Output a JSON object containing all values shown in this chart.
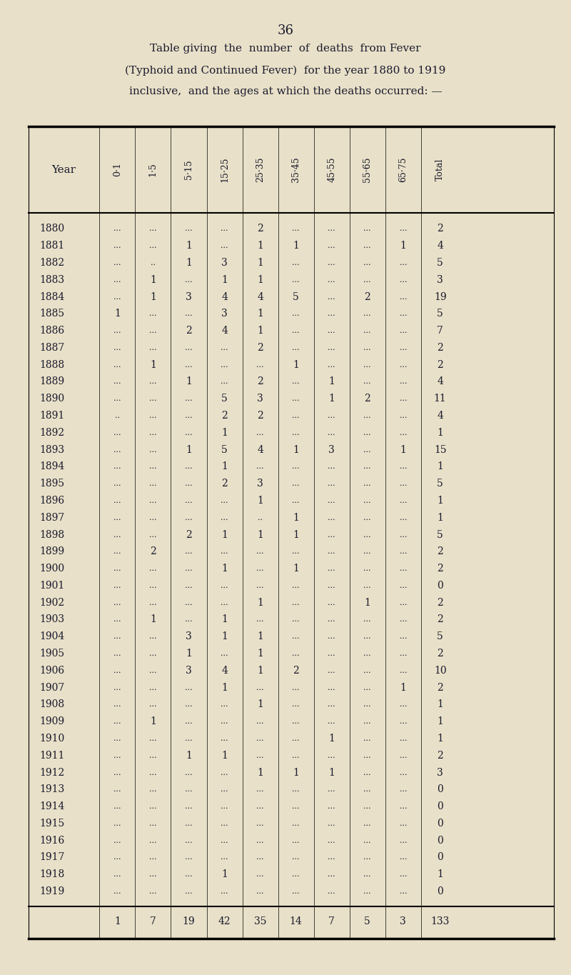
{
  "page_number": "36",
  "title_lines": [
    "Table giving  the  number  of  deaths  from Fever",
    "(Typhoid and Continued Fever)  for the year 1880 to 1919",
    "inclusive,  and the ages at which the deaths occurred: —"
  ],
  "columns": [
    "Year",
    "0·1",
    "1·5",
    "5·15",
    "15·25",
    "25·35",
    "35·45",
    "45·55",
    "55·65",
    "65·75",
    "Total"
  ],
  "col_headers_rotated": [
    "0·1",
    "1·5",
    "5·15",
    "15·25",
    "25·35",
    "35·45",
    "45·55",
    "55·65",
    "65·75",
    "Total"
  ],
  "rows": [
    [
      1880,
      "...",
      "...",
      "...",
      "...",
      2,
      "...",
      "...",
      "...",
      "...",
      2
    ],
    [
      1881,
      "...",
      "...",
      1,
      "...",
      1,
      1,
      "...",
      "...",
      1,
      4
    ],
    [
      1882,
      "...",
      "..",
      1,
      3,
      1,
      "...",
      "...",
      "...",
      "...",
      5
    ],
    [
      1883,
      "...",
      1,
      "...",
      1,
      1,
      "...",
      "...",
      "...",
      "...",
      3
    ],
    [
      1884,
      "...",
      1,
      3,
      4,
      4,
      5,
      "...",
      2,
      "...",
      19
    ],
    [
      1885,
      1,
      "...",
      "...",
      3,
      1,
      "...",
      "...",
      "...",
      "...",
      5
    ],
    [
      1886,
      "...",
      "...",
      2,
      4,
      1,
      "...",
      "...",
      "...",
      "...",
      7
    ],
    [
      1887,
      "...",
      "...",
      "...",
      "...",
      2,
      "...",
      "...",
      "...",
      "...",
      2
    ],
    [
      1888,
      "...",
      1,
      "...",
      "...",
      "...",
      1,
      "...",
      "...",
      "...",
      2
    ],
    [
      1889,
      "...",
      "...",
      1,
      "...",
      2,
      "...",
      1,
      "...",
      "...",
      4
    ],
    [
      1890,
      "...",
      "...",
      "...",
      5,
      3,
      "...",
      1,
      2,
      "...",
      11
    ],
    [
      1891,
      "..",
      "...",
      "...",
      2,
      2,
      "...",
      "...",
      "...",
      "...",
      4
    ],
    [
      1892,
      "...",
      "...",
      "...",
      1,
      "...",
      "...",
      "...",
      "...",
      "...",
      1
    ],
    [
      1893,
      "...",
      "...",
      1,
      5,
      4,
      1,
      3,
      "...",
      1,
      15
    ],
    [
      1894,
      "...",
      "...",
      "...",
      1,
      "...",
      "...",
      "...",
      "...",
      "...",
      1
    ],
    [
      1895,
      "...",
      "...",
      "...",
      2,
      3,
      "...",
      "...",
      "...",
      "...",
      5
    ],
    [
      1896,
      "...",
      "...",
      "...",
      "...",
      1,
      "...",
      "...",
      "...",
      "...",
      1
    ],
    [
      1897,
      "...",
      "...",
      "...",
      "...",
      "..",
      1,
      "...",
      "...",
      "...",
      1
    ],
    [
      1898,
      "...",
      "...",
      2,
      1,
      1,
      1,
      "...",
      "...",
      "...",
      5
    ],
    [
      1899,
      "...",
      2,
      "...",
      "...",
      "...",
      "...",
      "...",
      "...",
      "...",
      2
    ],
    [
      1900,
      "...",
      "...",
      "...",
      1,
      "...",
      1,
      "...",
      "...",
      "...",
      2
    ],
    [
      1901,
      "...",
      "...",
      "...",
      "...",
      "...",
      "...",
      "...",
      "...",
      "...",
      0
    ],
    [
      1902,
      "...",
      "...",
      "...",
      "...",
      1,
      "...",
      "...",
      1,
      "...",
      2
    ],
    [
      1903,
      "...",
      1,
      "...",
      1,
      "...",
      "...",
      "...",
      "...",
      "...",
      2
    ],
    [
      1904,
      "...",
      "...",
      3,
      1,
      1,
      "...",
      "...",
      "...",
      "...",
      5
    ],
    [
      1905,
      "...",
      "...",
      1,
      "...",
      1,
      "...",
      "...",
      "...",
      "...",
      2
    ],
    [
      1906,
      "...",
      "...",
      3,
      4,
      1,
      2,
      "...",
      "...",
      "...",
      10
    ],
    [
      1907,
      "...",
      "...",
      "...",
      1,
      "...",
      "...",
      "...",
      "...",
      1,
      2
    ],
    [
      1908,
      "...",
      "...",
      "...",
      "...",
      1,
      "...",
      "...",
      "...",
      "...",
      1
    ],
    [
      1909,
      "...",
      1,
      "...",
      "...",
      "...",
      "...",
      "...",
      "...",
      "...",
      1
    ],
    [
      1910,
      "...",
      "...",
      "...",
      "...",
      "...",
      "...",
      1,
      "...",
      "...",
      1
    ],
    [
      1911,
      "...",
      "...",
      1,
      1,
      "...",
      "...",
      "...",
      "...",
      "...",
      2
    ],
    [
      1912,
      "...",
      "...",
      "...",
      "...",
      1,
      1,
      1,
      "...",
      "...",
      3
    ],
    [
      1913,
      "...",
      "...",
      "...",
      "...",
      "...",
      "...",
      "...",
      "...",
      "...",
      0
    ],
    [
      1914,
      "...",
      "...",
      "...",
      "...",
      "...",
      "...",
      "...",
      "...",
      "...",
      0
    ],
    [
      1915,
      "...",
      "...",
      "...",
      "...",
      "...",
      "...",
      "...",
      "...",
      "...",
      0
    ],
    [
      1916,
      "...",
      "...",
      "...",
      "...",
      "...",
      "...",
      "...",
      "...",
      "...",
      0
    ],
    [
      1917,
      "...",
      "...",
      "...",
      "...",
      "...",
      "...",
      "...",
      "...",
      "...",
      0
    ],
    [
      1918,
      "...",
      "...",
      "...",
      1,
      "...",
      "...",
      "...",
      "...",
      "...",
      1
    ],
    [
      1919,
      "...",
      "...",
      "...",
      "...",
      "...",
      "...",
      "...",
      "...",
      "...",
      0
    ]
  ],
  "totals_row": [
    1,
    7,
    19,
    42,
    35,
    14,
    7,
    5,
    3,
    133
  ],
  "bg_color": "#e8e0c8",
  "text_color": "#1a1a2e"
}
